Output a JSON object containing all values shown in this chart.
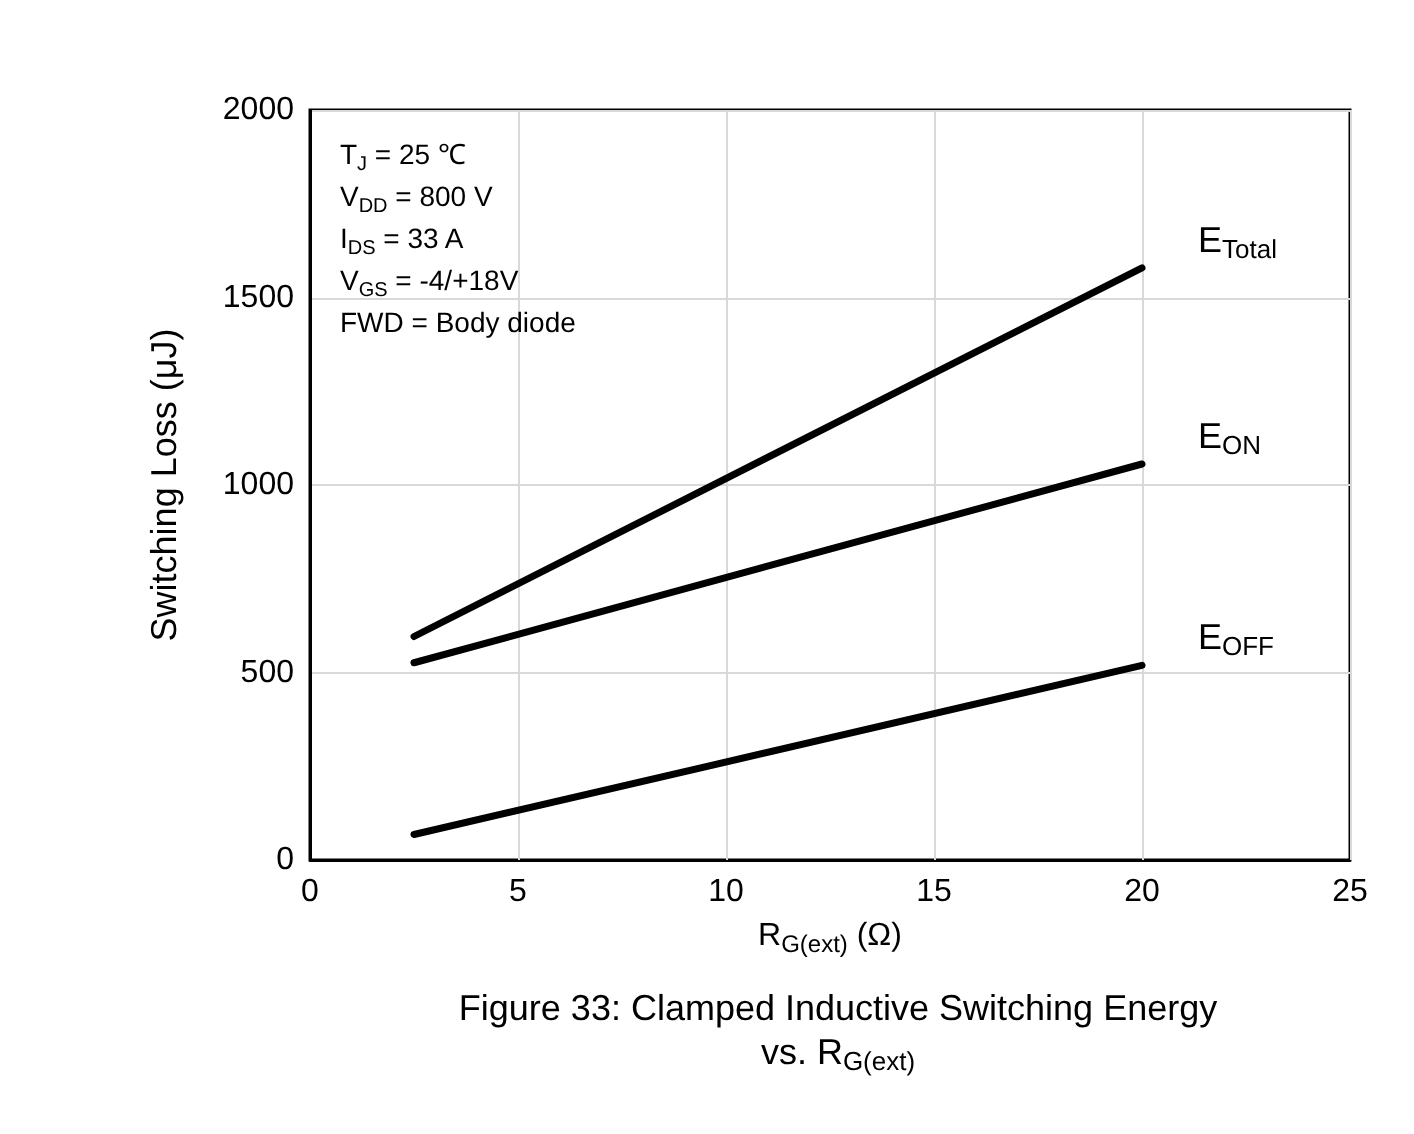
{
  "chart_data": {
    "type": "line",
    "title": "Figure 33: Clamped Inductive Switching Energy\nvs. R$_{G(ext)}$",
    "xlabel": "R$_{G(ext)}$ (Ω)",
    "ylabel": "Switching Loss (μJ)",
    "annotations": [
      "T$_{J}$ = 25 ℃",
      "V$_{DD}$ = 800 V",
      "I$_{DS}$ = 33 A",
      "V$_{GS}$ = -4/+18V",
      "FWD = Body diode"
    ],
    "x": [
      2.5,
      20
    ],
    "series": [
      {
        "name": "E$_{Total}$",
        "color": "#000000",
        "values": [
          596,
          1579
        ]
      },
      {
        "name": "E$_{ON}$",
        "color": "#000000",
        "values": [
          526,
          1056
        ]
      },
      {
        "name": "E$_{OFF}$",
        "color": "#000000",
        "values": [
          68,
          519
        ]
      }
    ],
    "xlim": [
      0,
      25
    ],
    "xticks": [
      0,
      5,
      10,
      15,
      20,
      25
    ],
    "ylim": [
      0,
      2000
    ],
    "yticks": [
      0,
      500,
      1000,
      1500,
      2000
    ],
    "grid": true,
    "legend": false,
    "marker": "none",
    "line_style": "solid"
  }
}
